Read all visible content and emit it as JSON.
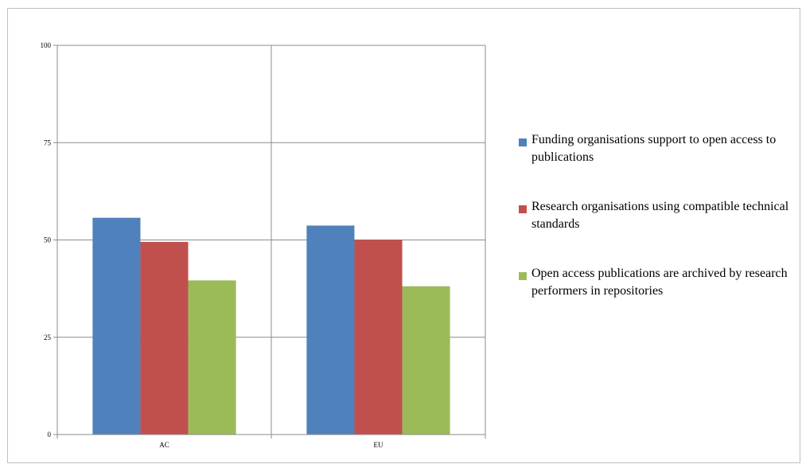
{
  "chart_data": {
    "type": "bar",
    "categories": [
      "AC",
      "EU"
    ],
    "series": [
      {
        "name": "Funding organisations support to open access to publications",
        "color": "#4f81bd",
        "values": [
          55.7,
          53.7
        ]
      },
      {
        "name": "Research organisations using compatible technical standards",
        "color": "#c0504d",
        "values": [
          49.5,
          50.1
        ]
      },
      {
        "name": "Open access publications are archived by research performers in repositories",
        "color": "#9bbb59",
        "values": [
          39.6,
          38.1
        ]
      }
    ],
    "yticks": [
      0,
      25,
      50,
      75,
      100
    ],
    "ylim": [
      0,
      100
    ],
    "grid": true,
    "legend_position": "right",
    "title": "",
    "xlabel": "",
    "ylabel": ""
  }
}
